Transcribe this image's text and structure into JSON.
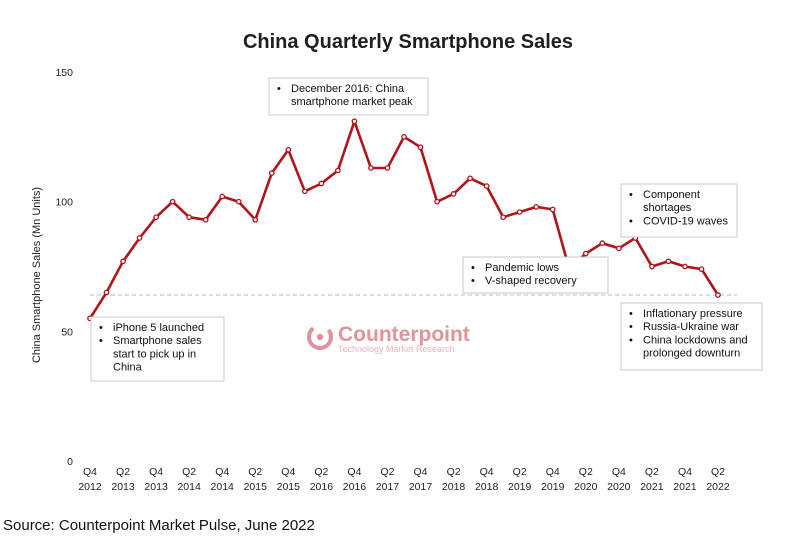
{
  "chart_data": {
    "type": "line",
    "title": "China Quarterly Smartphone Sales",
    "ylabel": "China Smartphone Sales (Mn Units)",
    "xlabel": "",
    "ylim": [
      0,
      150
    ],
    "yticks": [
      0,
      50,
      100,
      150
    ],
    "series": [
      {
        "name": "China smartphone sales",
        "values": [
          55,
          65,
          77,
          86,
          94,
          100,
          94,
          93,
          102,
          100,
          93,
          111,
          120,
          104,
          107,
          112,
          131,
          113,
          113,
          125,
          121,
          100,
          103,
          109,
          106,
          94,
          96,
          98,
          97,
          74,
          80,
          84,
          82,
          86,
          75,
          77,
          75,
          74,
          64
        ]
      }
    ],
    "x_tick_labels": [
      {
        "q": "Q4",
        "y": "2012"
      },
      {
        "q": "Q2",
        "y": "2013"
      },
      {
        "q": "Q4",
        "y": "2013"
      },
      {
        "q": "Q2",
        "y": "2014"
      },
      {
        "q": "Q4",
        "y": "2014"
      },
      {
        "q": "Q2",
        "y": "2015"
      },
      {
        "q": "Q4",
        "y": "2015"
      },
      {
        "q": "Q2",
        "y": "2016"
      },
      {
        "q": "Q4",
        "y": "2016"
      },
      {
        "q": "Q2",
        "y": "2017"
      },
      {
        "q": "Q4",
        "y": "2017"
      },
      {
        "q": "Q2",
        "y": "2018"
      },
      {
        "q": "Q4",
        "y": "2018"
      },
      {
        "q": "Q2",
        "y": "2019"
      },
      {
        "q": "Q4",
        "y": "2019"
      },
      {
        "q": "Q2",
        "y": "2020"
      },
      {
        "q": "Q4",
        "y": "2020"
      },
      {
        "q": "Q2",
        "y": "2021"
      },
      {
        "q": "Q4",
        "y": "2021"
      },
      {
        "q": "Q2",
        "y": "2022"
      }
    ],
    "reference_line": {
      "value": 64,
      "style": "dashed"
    },
    "annotations": [
      {
        "name": "iphone5",
        "lines": [
          "iPhone 5 launched",
          "Smartphone sales",
          "start to pick up in",
          "China"
        ],
        "bullet_starts": [
          0,
          1
        ]
      },
      {
        "name": "peak",
        "lines": [
          "December 2016: China",
          "smartphone market peak"
        ],
        "bullet_starts": [
          0
        ]
      },
      {
        "name": "pandemic",
        "lines": [
          "Pandemic lows",
          "V-shaped recovery"
        ],
        "bullet_starts": [
          0,
          1
        ]
      },
      {
        "name": "component",
        "lines": [
          "Component",
          "shortages",
          "COVID-19 waves"
        ],
        "bullet_starts": [
          0,
          2
        ]
      },
      {
        "name": "inflation",
        "lines": [
          "Inflationary pressure",
          "Russia-Ukraine war",
          "China lockdowns and",
          "prolonged downturn"
        ],
        "bullet_starts": [
          0,
          1,
          2
        ]
      }
    ],
    "bullet_char": "•",
    "colors": {
      "line": "#b0141a",
      "marker_fill": "#ffffff",
      "ref_line": "#bbbbbb"
    }
  },
  "watermark": {
    "name": "Counterpoint",
    "tagline": "Technology Market Research",
    "color": "#e0939a"
  },
  "source": "Source: Counterpoint Market Pulse, June 2022"
}
